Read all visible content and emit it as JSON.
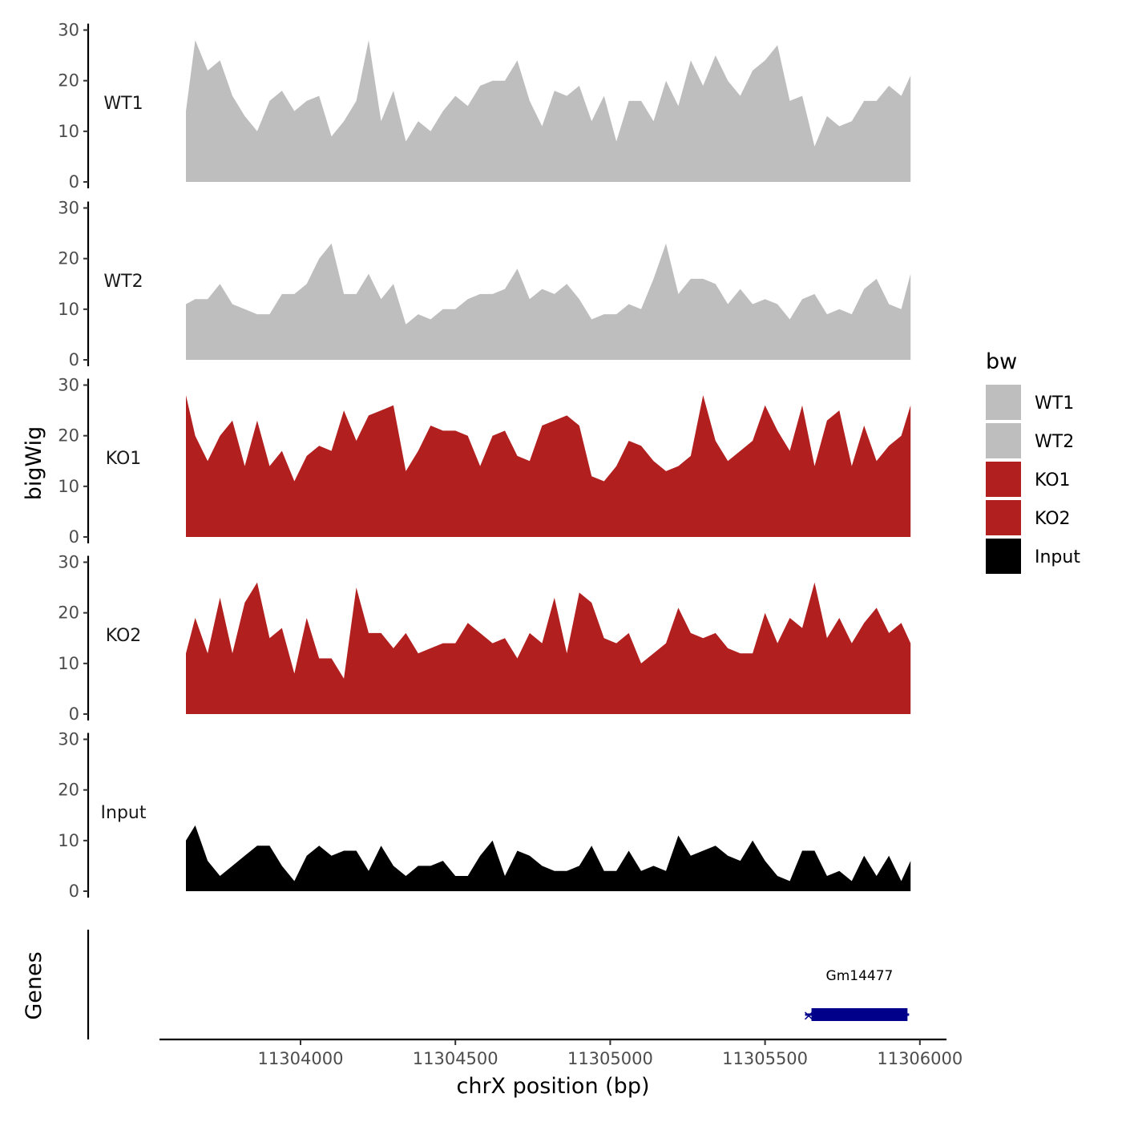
{
  "chart_data": {
    "type": "area",
    "ylabel": "bigWig",
    "xlabel": "chrX position (bp)",
    "xlim": [
      11303600,
      11306060
    ],
    "ylim": [
      0,
      30
    ],
    "y_ticks": [
      "0",
      "10",
      "20",
      "30"
    ],
    "x_ticks": [
      {
        "value": 11304000,
        "label": "11304000"
      },
      {
        "value": 11304500,
        "label": "11304500"
      },
      {
        "value": 11305000,
        "label": "11305000"
      },
      {
        "value": 11305500,
        "label": "11305500"
      },
      {
        "value": 11306000,
        "label": "11306000"
      }
    ],
    "x": [
      11303630,
      11303660,
      11303700,
      11303740,
      11303780,
      11303820,
      11303860,
      11303900,
      11303940,
      11303980,
      11304020,
      11304060,
      11304100,
      11304140,
      11304180,
      11304220,
      11304260,
      11304300,
      11304340,
      11304380,
      11304420,
      11304460,
      11304500,
      11304540,
      11304580,
      11304620,
      11304660,
      11304700,
      11304740,
      11304780,
      11304820,
      11304860,
      11304900,
      11304940,
      11304980,
      11305020,
      11305060,
      11305100,
      11305140,
      11305180,
      11305220,
      11305260,
      11305300,
      11305340,
      11305380,
      11305420,
      11305460,
      11305500,
      11305540,
      11305580,
      11305620,
      11305660,
      11305700,
      11305740,
      11305780,
      11305820,
      11305860,
      11305900,
      11305940,
      11305970
    ],
    "series": [
      {
        "name": "WT1",
        "color": "#bebebe",
        "values": [
          14,
          28,
          22,
          24,
          17,
          13,
          10,
          16,
          18,
          14,
          16,
          17,
          9,
          12,
          16,
          28,
          12,
          18,
          8,
          12,
          10,
          14,
          17,
          15,
          19,
          20,
          20,
          24,
          16,
          11,
          18,
          17,
          19,
          12,
          17,
          8,
          16,
          16,
          12,
          20,
          15,
          24,
          19,
          25,
          20,
          17,
          22,
          24,
          27,
          16,
          17,
          7,
          13,
          11,
          12,
          16,
          16,
          19,
          17,
          21
        ]
      },
      {
        "name": "WT2",
        "color": "#bebebe",
        "values": [
          11,
          12,
          12,
          15,
          11,
          10,
          9,
          9,
          13,
          13,
          15,
          20,
          23,
          13,
          13,
          17,
          12,
          15,
          7,
          9,
          8,
          10,
          10,
          12,
          13,
          13,
          14,
          18,
          12,
          14,
          13,
          15,
          12,
          8,
          9,
          9,
          11,
          10,
          16,
          23,
          13,
          16,
          16,
          15,
          11,
          14,
          11,
          12,
          11,
          8,
          12,
          13,
          9,
          10,
          9,
          14,
          16,
          11,
          10,
          17
        ]
      },
      {
        "name": "KO1",
        "color": "#b21f1f",
        "values": [
          28,
          20,
          15,
          20,
          23,
          14,
          23,
          14,
          17,
          11,
          16,
          18,
          17,
          25,
          19,
          24,
          25,
          26,
          13,
          17,
          22,
          21,
          21,
          20,
          14,
          20,
          21,
          16,
          15,
          22,
          23,
          24,
          22,
          12,
          11,
          14,
          19,
          18,
          15,
          13,
          14,
          16,
          28,
          19,
          15,
          17,
          19,
          26,
          21,
          17,
          26,
          14,
          23,
          25,
          14,
          22,
          15,
          18,
          20,
          26
        ]
      },
      {
        "name": "KO2",
        "color": "#b21f1f",
        "values": [
          12,
          19,
          12,
          23,
          12,
          22,
          26,
          15,
          17,
          8,
          19,
          11,
          11,
          7,
          25,
          16,
          16,
          13,
          16,
          12,
          13,
          14,
          14,
          18,
          16,
          14,
          15,
          11,
          16,
          14,
          23,
          12,
          24,
          22,
          15,
          14,
          16,
          10,
          12,
          14,
          21,
          16,
          15,
          16,
          13,
          12,
          12,
          20,
          14,
          19,
          17,
          26,
          15,
          19,
          14,
          18,
          21,
          16,
          18,
          14
        ]
      },
      {
        "name": "Input",
        "color": "#000000",
        "values": [
          10,
          13,
          6,
          3,
          5,
          7,
          9,
          9,
          5,
          2,
          7,
          9,
          7,
          8,
          8,
          4,
          9,
          5,
          3,
          5,
          5,
          6,
          3,
          3,
          7,
          10,
          3,
          8,
          7,
          5,
          4,
          4,
          5,
          9,
          4,
          4,
          8,
          4,
          5,
          4,
          11,
          7,
          8,
          9,
          7,
          6,
          10,
          6,
          3,
          2,
          8,
          8,
          3,
          4,
          2,
          7,
          3,
          7,
          2,
          6
        ]
      }
    ],
    "tracks": [
      "WT1",
      "WT2",
      "KO1",
      "KO2",
      "Input"
    ],
    "genes_track": {
      "label": "Genes",
      "genes": [
        {
          "name": "Gm14477",
          "start": 11305650,
          "end": 11305960,
          "color": "#00008b",
          "strand": "-"
        }
      ]
    },
    "legend": {
      "title": "bw",
      "position": "right",
      "items": [
        {
          "label": "WT1",
          "color": "#bebebe"
        },
        {
          "label": "WT2",
          "color": "#bebebe"
        },
        {
          "label": "KO1",
          "color": "#b21f1f"
        },
        {
          "label": "KO2",
          "color": "#b21f1f"
        },
        {
          "label": "Input",
          "color": "#000000"
        }
      ]
    }
  }
}
